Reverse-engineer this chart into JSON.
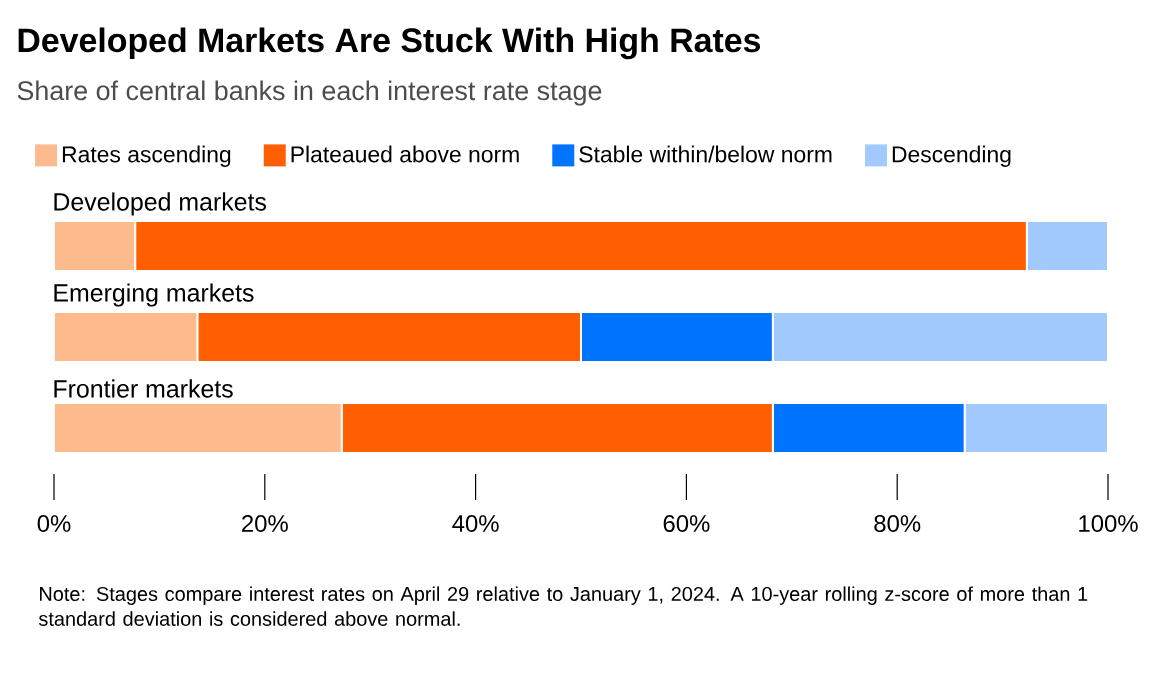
{
  "chart_data": {
    "type": "bar",
    "orientation": "horizontal",
    "stacked": true,
    "title": "Developed Markets Are Stuck With High Rates",
    "subtitle": "Share of central banks in each interest rate stage",
    "categories": [
      "Developed markets",
      "Emerging markets",
      "Frontier markets"
    ],
    "series": [
      {
        "name": "Rates ascending",
        "color": "#fdba8c",
        "values": [
          7.7,
          13.6,
          27.3
        ]
      },
      {
        "name": "Plateaued above norm",
        "color": "#ff5f00",
        "values": [
          84.6,
          36.4,
          40.9
        ]
      },
      {
        "name": "Stable within/below norm",
        "color": "#0073ff",
        "values": [
          0,
          18.2,
          18.2
        ]
      },
      {
        "name": "Descending",
        "color": "#a3caff",
        "values": [
          7.7,
          31.8,
          13.6
        ]
      }
    ],
    "xlim": [
      0,
      100
    ],
    "xticks": [
      {
        "value": 0,
        "label": "0%"
      },
      {
        "value": 20,
        "label": "20%"
      },
      {
        "value": 40,
        "label": "40%"
      },
      {
        "value": 60,
        "label": "60%"
      },
      {
        "value": 80,
        "label": "80%"
      },
      {
        "value": 100,
        "label": "100%"
      }
    ],
    "legend": "top",
    "grid": false,
    "annotations": [
      "Note: Stages compare interest rates on April 29 relative to January 1, 2024. A 10-year rolling z-score of more than 1 standard deviation is considered above normal."
    ]
  }
}
